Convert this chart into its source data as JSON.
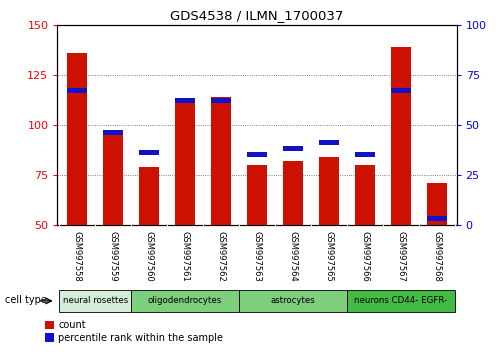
{
  "title": "GDS4538 / ILMN_1700037",
  "samples": [
    "GSM997558",
    "GSM997559",
    "GSM997560",
    "GSM997561",
    "GSM997562",
    "GSM997563",
    "GSM997564",
    "GSM997565",
    "GSM997566",
    "GSM997567",
    "GSM997568"
  ],
  "count_values": [
    136,
    96,
    79,
    113,
    114,
    80,
    82,
    84,
    80,
    139,
    71
  ],
  "percentile_values": [
    67,
    46,
    36,
    62,
    62,
    35,
    38,
    41,
    35,
    67,
    3
  ],
  "cell_type_groups": [
    {
      "label": "neural rosettes",
      "cols": [
        0,
        2
      ],
      "color": "#d4edda"
    },
    {
      "label": "oligodendrocytes",
      "cols": [
        2,
        5
      ],
      "color": "#7dce7d"
    },
    {
      "label": "astrocytes",
      "cols": [
        5,
        8
      ],
      "color": "#7dce7d"
    },
    {
      "label": "neurons CD44- EGFR-",
      "cols": [
        8,
        11
      ],
      "color": "#44bb44"
    }
  ],
  "ylim_left": [
    50,
    150
  ],
  "ylim_right": [
    0,
    100
  ],
  "yticks_left": [
    50,
    75,
    100,
    125,
    150
  ],
  "yticks_right": [
    0,
    25,
    50,
    75,
    100
  ],
  "bar_color": "#cc1100",
  "percentile_color": "#1111cc",
  "bar_width": 0.55,
  "grid_color": "#555555",
  "bg_color": "#ffffff",
  "label_bg": "#cccccc",
  "label_divider": "#aaaaaa"
}
